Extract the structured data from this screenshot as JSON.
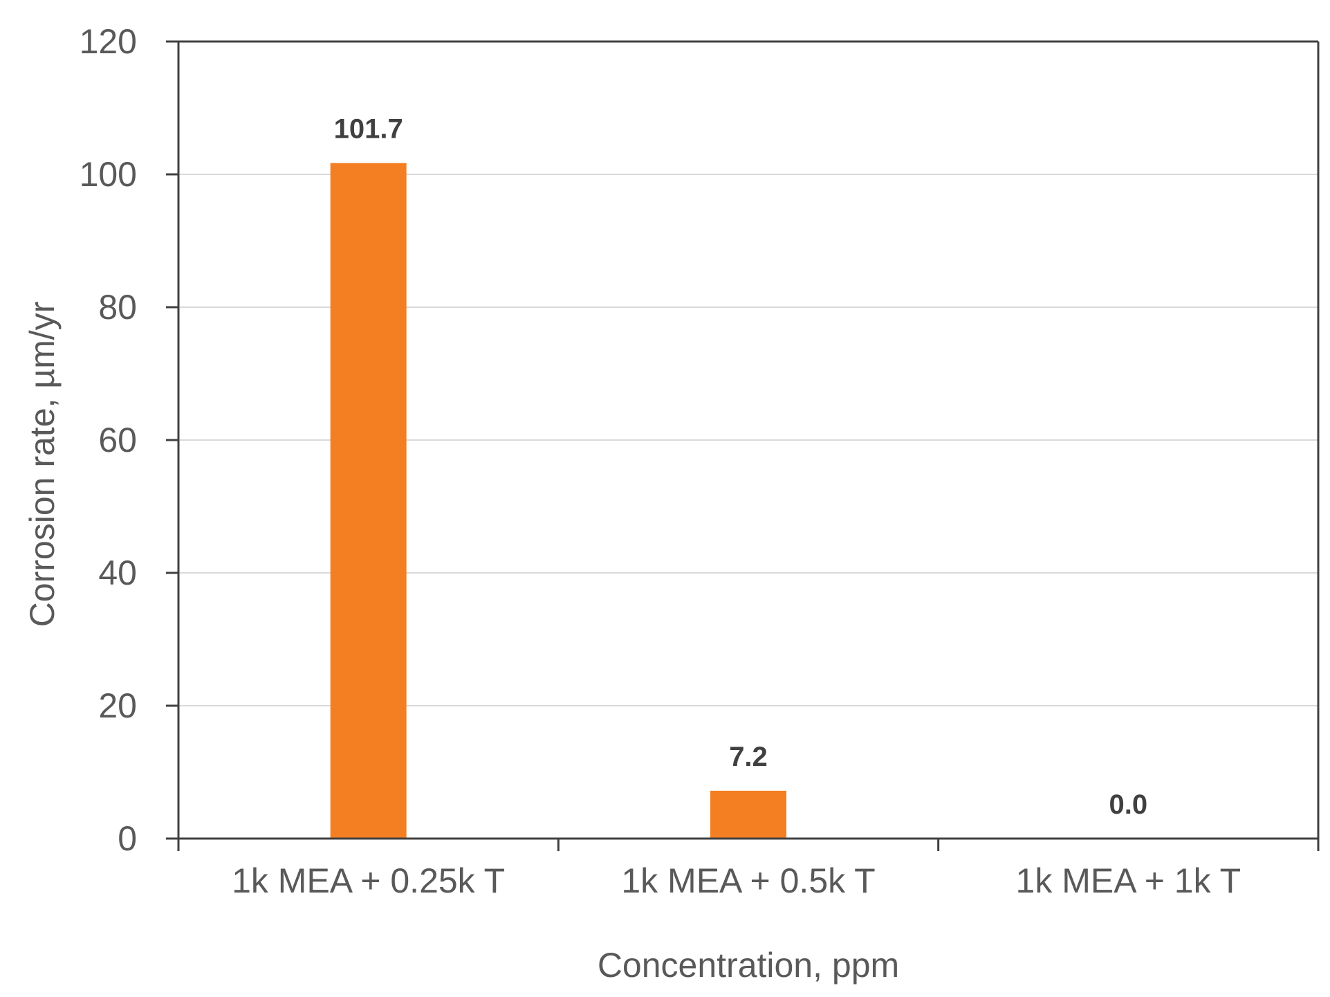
{
  "chart_data": {
    "type": "bar",
    "title": "",
    "xlabel": "Concentration, ppm",
    "ylabel": "Corrosion rate, µm/yr",
    "categories": [
      "1k MEA + 0.25k T",
      "1k MEA + 0.5k T",
      "1k MEA + 1k T"
    ],
    "values": [
      101.7,
      7.2,
      0.0
    ],
    "data_labels": [
      "101.7",
      "7.2",
      "0.0"
    ],
    "ylim": [
      0,
      120
    ],
    "yticks": [
      0,
      20,
      40,
      60,
      80,
      100,
      120
    ],
    "grid": true,
    "legend": "none",
    "bar_color": "#F47F22"
  }
}
